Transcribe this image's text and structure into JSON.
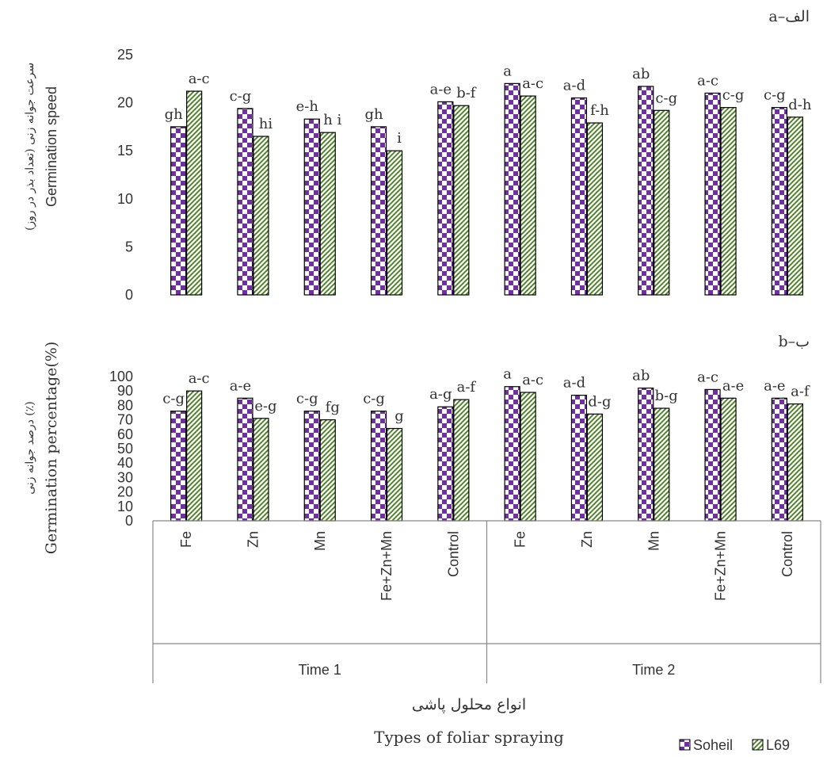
{
  "chart_data": [
    {
      "type": "bar",
      "panel_label": "a–الف",
      "ylabel_fa": "سرعت جوانه زنی (تعداد بذر در روز)",
      "ylabel_en": "Germination speed",
      "ylim": [
        0,
        25
      ],
      "yticks": [
        0,
        5,
        10,
        15,
        20,
        25
      ],
      "categories": [
        "Fe",
        "Zn",
        "Mn",
        "Fe+Zn+Mn",
        "Control",
        "Fe",
        "Zn",
        "Mn",
        "Fe+Zn+Mn",
        "Control"
      ],
      "series": [
        {
          "name": "Soheil",
          "values": [
            17.5,
            19.4,
            18.3,
            17.5,
            20.1,
            22.0,
            20.5,
            21.7,
            21.0,
            19.5
          ],
          "letters": [
            "gh",
            "c-g",
            "e-h",
            "gh",
            "a-e",
            "a",
            "a-d",
            "ab",
            "a-c",
            "c-g"
          ]
        },
        {
          "name": "L69",
          "values": [
            21.2,
            16.5,
            16.9,
            15.0,
            19.7,
            20.7,
            17.9,
            19.2,
            19.5,
            18.5
          ],
          "letters": [
            "a-c",
            "hi",
            "h i",
            "i",
            "b-f",
            "a-c",
            "f-h",
            "c-g",
            "c-g",
            "d-h"
          ]
        }
      ]
    },
    {
      "type": "bar",
      "panel_label": "b–ب",
      "ylabel_fa": "درصد جوانه زنی (٪)",
      "ylabel_en": "Germination percentage(%)",
      "ylim": [
        0,
        100
      ],
      "yticks": [
        0,
        10,
        20,
        30,
        40,
        50,
        60,
        70,
        80,
        90,
        100
      ],
      "categories": [
        "Fe",
        "Zn",
        "Mn",
        "Fe+Zn+Mn",
        "Control",
        "Fe",
        "Zn",
        "Mn",
        "Fe+Zn+Mn",
        "Control"
      ],
      "groups": [
        "Time 1",
        "Time 2"
      ],
      "xlabel_fa": "انواع محلول پاشی",
      "xlabel_en": "Types of foliar spraying",
      "series": [
        {
          "name": "Soheil",
          "values": [
            76,
            85,
            76,
            76,
            79,
            93,
            87,
            92,
            91,
            85
          ],
          "letters": [
            "c-g",
            "a-e",
            "c-g",
            "c-g",
            "a-g",
            "a",
            "a-d",
            "ab",
            "a-c",
            "a-e"
          ]
        },
        {
          "name": "L69",
          "values": [
            90,
            71,
            70,
            64,
            84,
            89,
            74,
            78,
            85,
            81
          ],
          "letters": [
            "a-c",
            "e-g",
            "fg",
            "g",
            "a-f",
            "a-c",
            "d-g",
            "b-g",
            "a-e",
            "a-f"
          ]
        }
      ]
    }
  ],
  "legend": [
    {
      "name": "Soheil",
      "color": "#7030a0"
    },
    {
      "name": "L69",
      "color": "#548235"
    }
  ]
}
